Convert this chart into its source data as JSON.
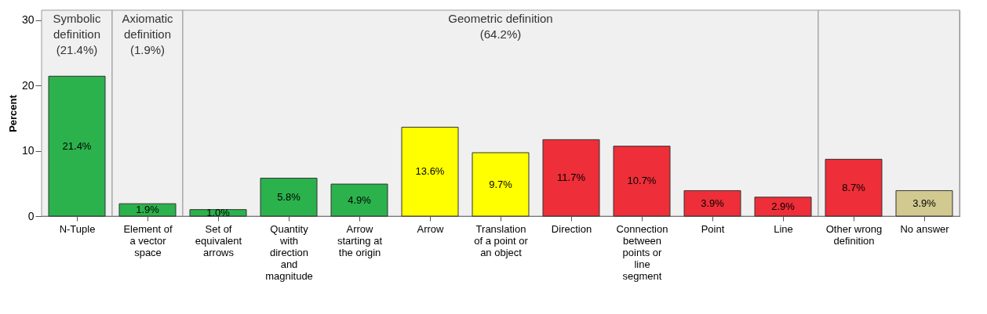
{
  "chart_data": {
    "type": "bar",
    "ylabel": "Percent",
    "categories": [
      "N-Tuple",
      "Element of a vector space",
      "Set of equivalent arrows",
      "Quantity with direction and magnitude",
      "Arrow starting at the origin",
      "Arrow",
      "Translation of a point or an object",
      "Direction",
      "Connection between points or line segment",
      "Point",
      "Line",
      "Other wrong definition",
      "No answer"
    ],
    "values": [
      21.4,
      1.9,
      1.0,
      5.8,
      4.9,
      13.6,
      9.7,
      11.7,
      10.7,
      3.9,
      2.9,
      8.7,
      3.9
    ],
    "colors": [
      "#2bb24c",
      "#2bb24c",
      "#2bb24c",
      "#2bb24c",
      "#2bb24c",
      "#ffff00",
      "#ffff00",
      "#ee2e38",
      "#ee2e38",
      "#ee2e38",
      "#ee2e38",
      "#ee2e38",
      "#d1c98f"
    ],
    "value_labels": [
      "21.4%",
      "1.9%",
      "1.0%",
      "5.8%",
      "4.9%",
      "13.6%",
      "9.7%",
      "11.7%",
      "10.7%",
      "3.9%",
      "2.9%",
      "8.7%",
      "3.9%"
    ],
    "ylim": [
      0,
      31.5
    ],
    "yticks": [
      0,
      10,
      20,
      30
    ],
    "bands": [
      {
        "axis": "x",
        "from": "N-Tuple",
        "to": "N-Tuple",
        "label": "Symbolic definition (21.4%)",
        "color": "#f0f0f0"
      },
      {
        "axis": "x",
        "from": "Element of a vector space",
        "to": "Element of a vector space",
        "label": "Axiomatic definition (1.9%)",
        "color": "#f0f0f0"
      },
      {
        "axis": "x",
        "from": "Set of equivalent arrows",
        "to": "Line",
        "label": "Geometric definition (64.2%)",
        "color": "#f0f0f0"
      },
      {
        "axis": "x",
        "from": "Other wrong definition",
        "to": "No answer",
        "color": "#f0f0f0"
      }
    ]
  }
}
